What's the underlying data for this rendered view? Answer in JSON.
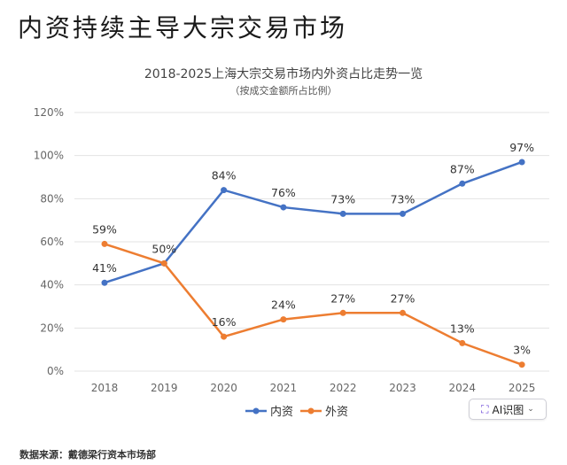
{
  "headline": "内资持续主导大宗交易市场",
  "source": "数据来源：戴德梁行资本市场部",
  "ai_badge": {
    "icon": "ai-sparkle-icon",
    "label": "AI识图",
    "chevron": "⌄"
  },
  "colors": {
    "series1": "#4472c4",
    "series2": "#ed7d31",
    "grid": "#e3e3e3"
  },
  "chart_data": {
    "type": "line",
    "title": "2018-2025上海大宗交易市场内外资占比走势一览",
    "subtitle": "（按成交金额所占比例）",
    "categories": [
      "2018",
      "2019",
      "2020",
      "2021",
      "2022",
      "2023",
      "2024",
      "2025"
    ],
    "y_ticks": [
      "0%",
      "20%",
      "40%",
      "60%",
      "80%",
      "100%",
      "120%"
    ],
    "ylim": [
      0,
      120
    ],
    "grid": true,
    "legend_position": "bottom",
    "series": [
      {
        "name": "内资",
        "values": [
          41,
          50,
          84,
          76,
          73,
          73,
          87,
          97
        ],
        "labels": [
          "41%",
          "50%",
          "84%",
          "76%",
          "73%",
          "73%",
          "87%",
          "97%"
        ]
      },
      {
        "name": "外资",
        "values": [
          59,
          50,
          16,
          24,
          27,
          27,
          13,
          3
        ],
        "labels": [
          "59%",
          "",
          "16%",
          "24%",
          "27%",
          "27%",
          "13%",
          "3%"
        ]
      }
    ]
  }
}
